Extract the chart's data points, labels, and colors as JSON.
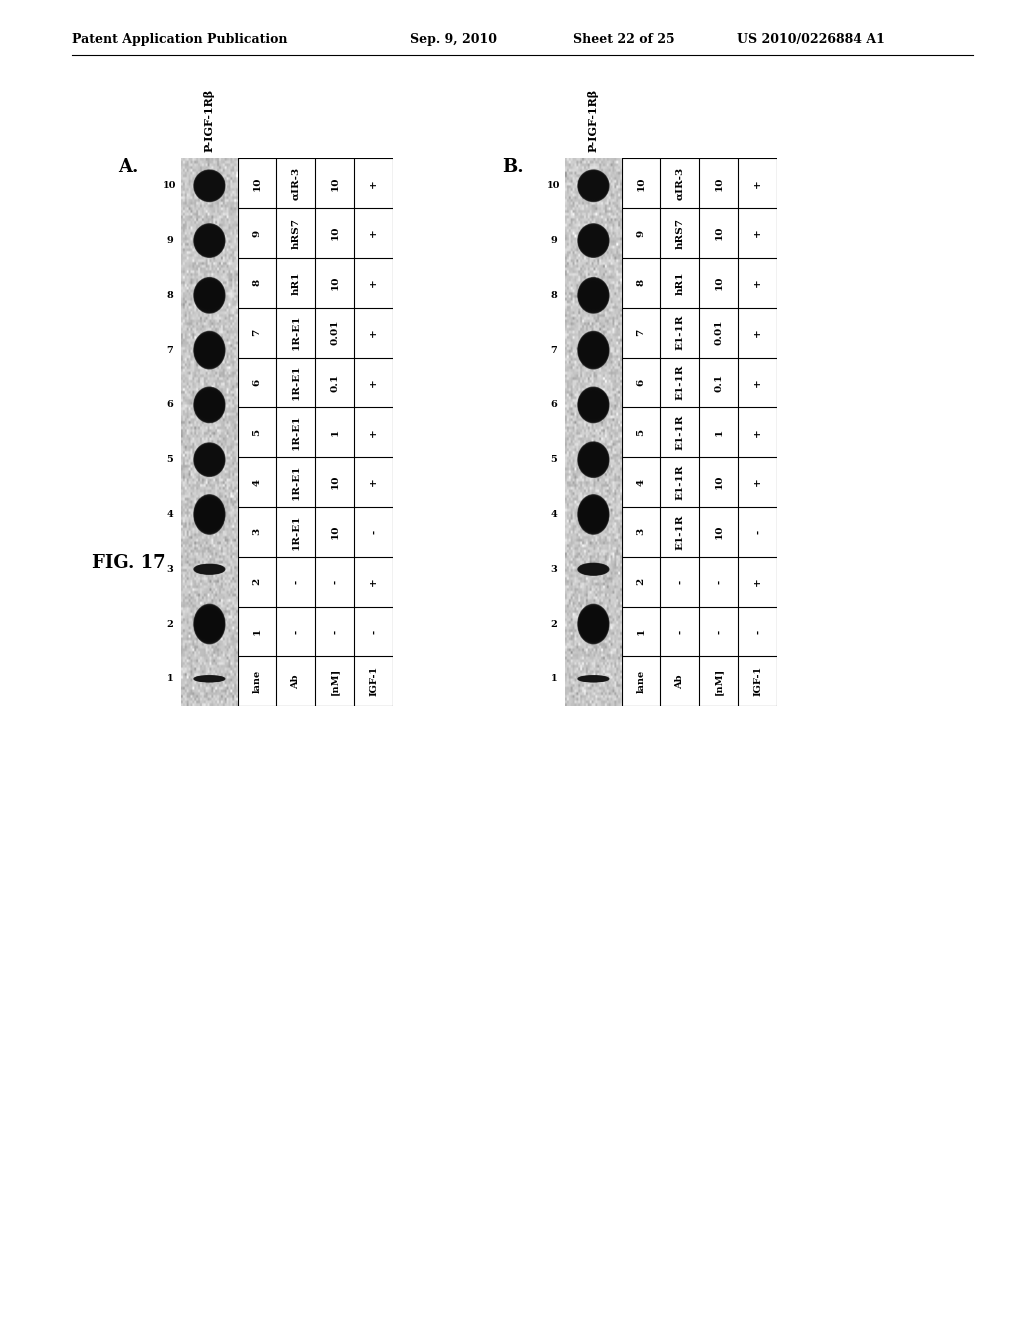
{
  "header_text": "Patent Application Publication",
  "header_date": "Sep. 9, 2010",
  "header_sheet": "Sheet 22 of 25",
  "header_patent": "US 2010/0226884 A1",
  "figure_label": "FIG. 17",
  "panel_A_label": "A.",
  "panel_B_label": "B.",
  "blot_label": "P-IGF-1Rβ",
  "lanes": [
    "1",
    "2",
    "3",
    "4",
    "5",
    "6",
    "7",
    "8",
    "9",
    "10"
  ],
  "table_A_rows": [
    [
      "lane",
      "1",
      "2",
      "3",
      "4",
      "5",
      "6",
      "7",
      "8",
      "9",
      "10"
    ],
    [
      "Ab",
      "-",
      "-",
      "1R-E1",
      "1R-E1",
      "1R-E1",
      "1R-E1",
      "1R-E1",
      "hR1",
      "hRS7",
      "αIR-3"
    ],
    [
      "[nM]",
      "-",
      "-",
      "10",
      "10",
      "1",
      "0.1",
      "0.01",
      "10",
      "10",
      "10"
    ],
    [
      "IGF-1",
      "-",
      "+",
      "-",
      "+",
      "+",
      "+",
      "+",
      "+",
      "+",
      "+"
    ]
  ],
  "table_B_rows": [
    [
      "lane",
      "1",
      "2",
      "3",
      "4",
      "5",
      "6",
      "7",
      "8",
      "9",
      "10"
    ],
    [
      "Ab",
      "-",
      "-",
      "E1-1R",
      "E1-1R",
      "E1-1R",
      "E1-1R",
      "E1-1R",
      "hR1",
      "hRS7",
      "αIR-3"
    ],
    [
      "[nM]",
      "-",
      "-",
      "10",
      "10",
      "1",
      "0.1",
      "0.01",
      "10",
      "10",
      "10"
    ],
    [
      "IGF-1",
      "-",
      "+",
      "-",
      "+",
      "+",
      "+",
      "+",
      "+",
      "+",
      "+"
    ]
  ],
  "background_color": "#ffffff",
  "band_intensity_A": [
    0.15,
    1.0,
    0.25,
    1.0,
    0.85,
    0.9,
    0.95,
    0.9,
    0.85,
    0.8
  ],
  "band_intensity_B": [
    0.15,
    1.0,
    0.3,
    1.0,
    0.9,
    0.9,
    0.95,
    0.9,
    0.85,
    0.8
  ]
}
